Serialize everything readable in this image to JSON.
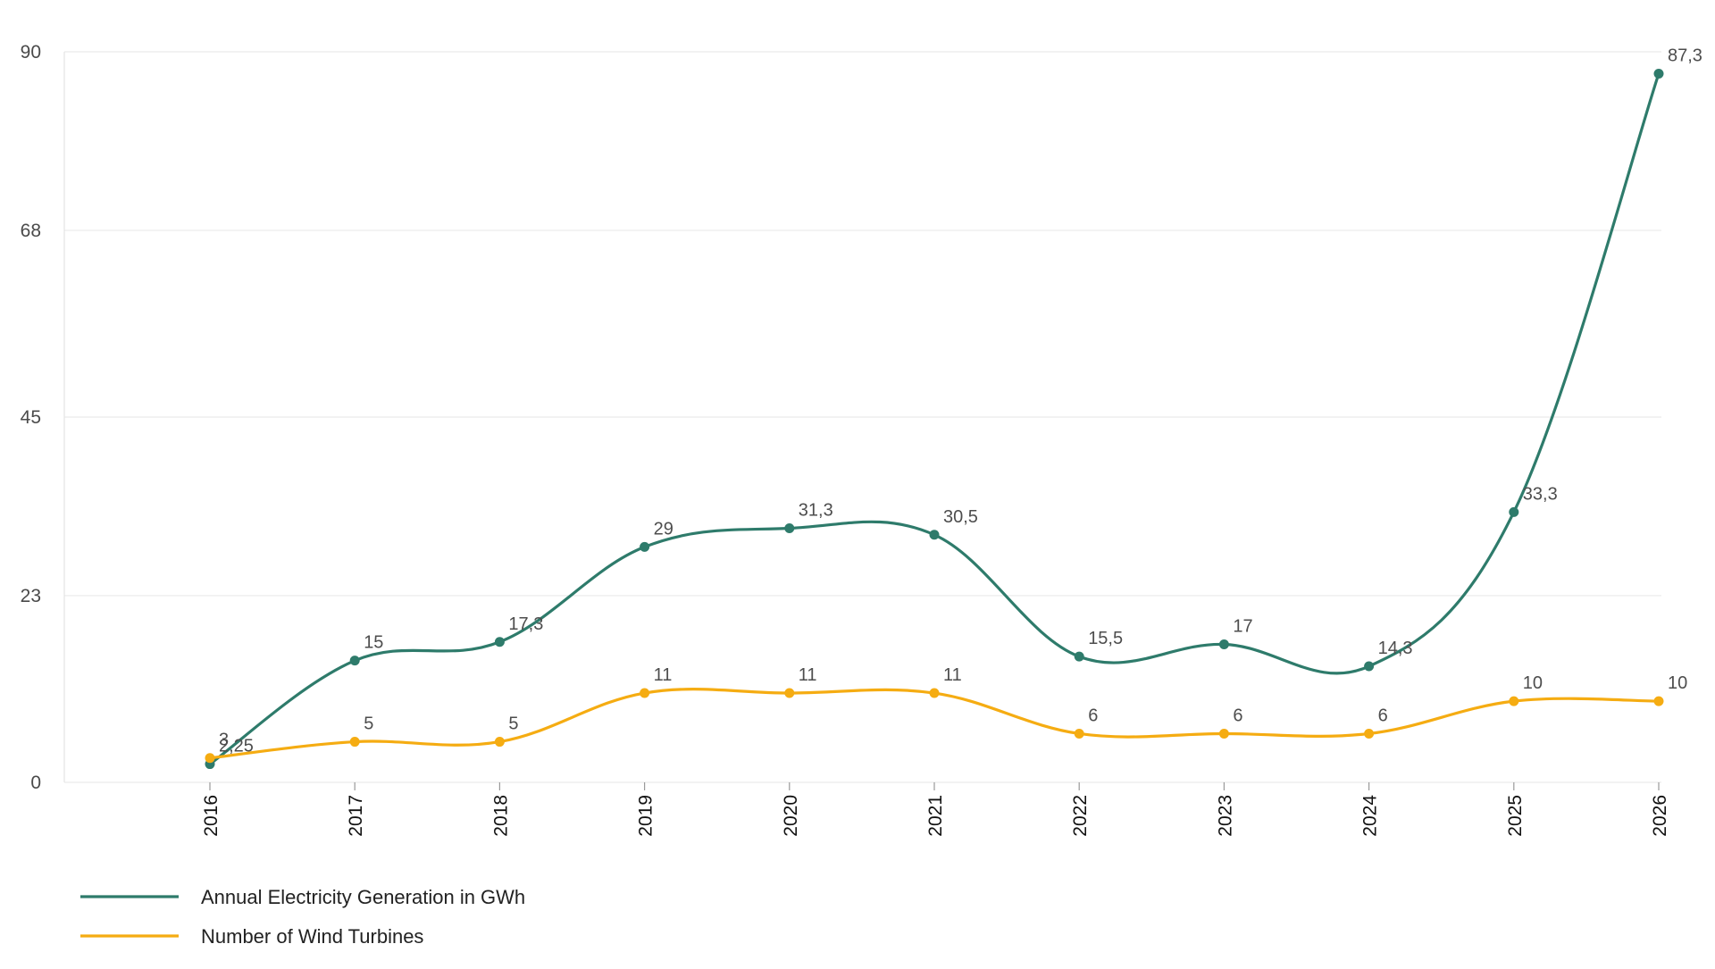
{
  "chart_data": {
    "type": "line",
    "title": "",
    "xlabel": "",
    "ylabel": "",
    "categories": [
      "2016",
      "2017",
      "2018",
      "2019",
      "2020",
      "2021",
      "2022",
      "2023",
      "2024",
      "2025",
      "2026"
    ],
    "ylim": [
      0,
      90
    ],
    "yticks": [
      "0",
      "23",
      "45",
      "68",
      "90"
    ],
    "grid": "horizontal",
    "legend_position": "bottom-left",
    "series": [
      {
        "name": "Annual Electricity Generation in GWh",
        "color": "#2e7b6b",
        "values": [
          2.25,
          15,
          17.3,
          29,
          31.3,
          30.5,
          15.5,
          17,
          14.3,
          33.3,
          87.3
        ],
        "labels": [
          "2,25",
          "15",
          "17,3",
          "29",
          "31,3",
          "30,5",
          "15,5",
          "17",
          "14,3",
          "33,3",
          "87,3"
        ]
      },
      {
        "name": "Number of Wind Turbines",
        "color": "#f5ac12",
        "values": [
          3,
          5,
          5,
          11,
          11,
          11,
          6,
          6,
          6,
          10,
          10
        ],
        "labels": [
          "3",
          "5",
          "5",
          "11",
          "11",
          "11",
          "6",
          "6",
          "6",
          "10",
          "10"
        ]
      }
    ]
  }
}
